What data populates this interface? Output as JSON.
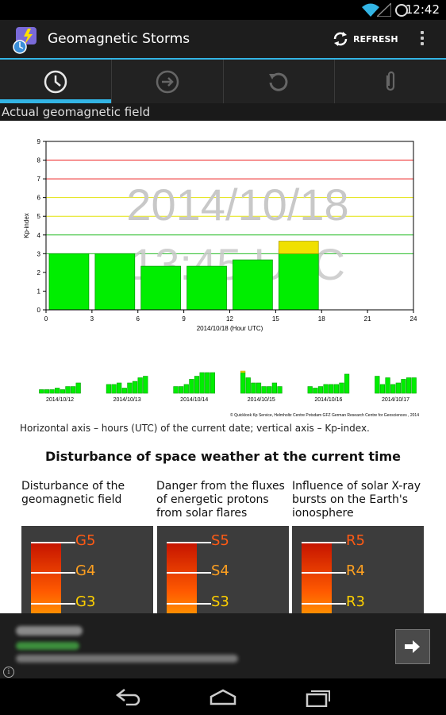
{
  "status_bar": {
    "time": "12:42"
  },
  "action_bar": {
    "title": "Geomagnetic Storms",
    "refresh_label": "REFRESH"
  },
  "tabs": [
    {
      "icon": "clock-icon",
      "active": true
    },
    {
      "icon": "arrow-right-circle-icon",
      "active": false
    },
    {
      "icon": "history-icon",
      "active": false
    },
    {
      "icon": "paperclip-icon",
      "active": false
    }
  ],
  "section_header": "Actual geomagnetic field",
  "chart_data": {
    "type": "bar",
    "ylabel": "Kp-index",
    "xlabel": "2014/10/18 (Hour UTC)",
    "xlim": [
      0,
      24
    ],
    "ylim": [
      0,
      9
    ],
    "x_ticks": [
      0,
      3,
      6,
      9,
      12,
      15,
      18,
      21,
      24
    ],
    "y_ticks": [
      0,
      1,
      2,
      3,
      4,
      5,
      6,
      7,
      8,
      9
    ],
    "watermark_date": "2014/10/18",
    "watermark_time": "13:45 UTC",
    "threshold_lines": [
      {
        "y": 3,
        "color": "#22bb22"
      },
      {
        "y": 4,
        "color": "#22bb22"
      },
      {
        "y": 5,
        "color": "#e3e30a"
      },
      {
        "y": 6,
        "color": "#e3e30a"
      },
      {
        "y": 7,
        "color": "#ee2222"
      },
      {
        "y": 8,
        "color": "#ee2222"
      },
      {
        "y": 9,
        "color": "#ee2222"
      }
    ],
    "bars": [
      {
        "start": 0,
        "end": 3,
        "value": 3.0,
        "partial_top": null
      },
      {
        "start": 3,
        "end": 6,
        "value": 3.0,
        "partial_top": null
      },
      {
        "start": 6,
        "end": 9,
        "value": 2.33,
        "partial_top": null
      },
      {
        "start": 9,
        "end": 12,
        "value": 2.33,
        "partial_top": null
      },
      {
        "start": 12,
        "end": 15,
        "value": 2.67,
        "partial_top": null
      },
      {
        "start": 15,
        "end": 18,
        "value": 3.0,
        "partial_top": 3.67
      }
    ],
    "history": [
      {
        "date": "2014/10/12",
        "values": [
          0.7,
          0.7,
          0.7,
          1.0,
          0.7,
          1.3,
          1.3,
          2.0
        ]
      },
      {
        "date": "2014/10/13",
        "values": [
          1.7,
          1.7,
          2.0,
          1.0,
          2.0,
          2.3,
          3.0,
          3.3
        ]
      },
      {
        "date": "2014/10/14",
        "values": [
          1.3,
          1.3,
          1.7,
          2.7,
          3.3,
          4.0,
          4.0,
          4.0
        ]
      },
      {
        "date": "2014/10/15",
        "values": [
          4.3,
          3.0,
          2.0,
          2.0,
          1.3,
          1.3,
          2.0,
          1.3
        ]
      },
      {
        "date": "2014/10/16",
        "values": [
          1.3,
          1.0,
          1.3,
          1.7,
          1.7,
          1.7,
          2.0,
          3.7
        ]
      },
      {
        "date": "2014/10/17",
        "values": [
          3.3,
          1.7,
          3.0,
          1.7,
          2.0,
          2.7,
          3.0,
          3.0
        ]
      }
    ],
    "credit": "© Quicklook Kp Service, Helmholtz Centre Potsdam GFZ German Research Centre for Geosciences , 2014",
    "colors": {
      "bar": "#00ee00",
      "bar_partial": "#f0e000",
      "bar_stroke": "#00a000"
    }
  },
  "chart_caption": "Horizontal axis – hours (UTC) of the current date; vertical axis – Kp-index.",
  "weather": {
    "title": "Disturbance of space weather at the current time",
    "columns": [
      {
        "description": "Disturbance of the geomagnetic field",
        "labels": [
          "G5",
          "G4",
          "G3"
        ]
      },
      {
        "description": "Danger from the fluxes of energetic protons from solar flares",
        "labels": [
          "S5",
          "S4",
          "S3"
        ]
      },
      {
        "description": "Influence of solar X-ray bursts on the Earth's ionosphere",
        "labels": [
          "R5",
          "R4",
          "R3"
        ]
      }
    ],
    "label_colors": [
      "#ff5a14",
      "#ffa020",
      "#ffd000"
    ]
  },
  "ad": {
    "info_glyph": "i"
  }
}
